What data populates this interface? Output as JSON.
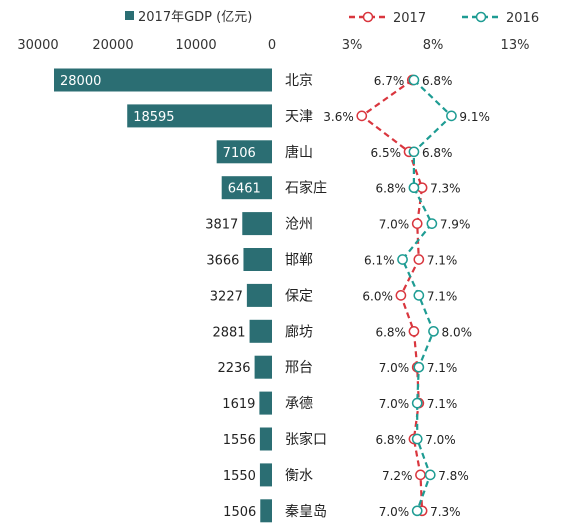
{
  "chart_data": [
    {
      "type": "bar",
      "orientation": "horizontal",
      "legend": "2017年GDP (亿元)",
      "x_ticks": [
        "30000",
        "20000",
        "10000",
        "0"
      ],
      "xlim": [
        0,
        30000
      ],
      "axis_position": "top",
      "direction": "right-to-left",
      "categories": [
        "北京",
        "天津",
        "唐山",
        "石家庄",
        "沧州",
        "邯郸",
        "保定",
        "廊坊",
        "邢台",
        "承德",
        "张家口",
        "衡水",
        "秦皇岛"
      ],
      "values": [
        28000,
        18595,
        7106,
        6461,
        3817,
        3666,
        3227,
        2881,
        2236,
        1619,
        1556,
        1550,
        1506
      ],
      "value_labels": [
        "28000",
        "18595",
        "7106",
        "6461",
        "3817",
        "3666",
        "3227",
        "2881",
        "2236",
        "1619",
        "1556",
        "1550",
        "1506"
      ],
      "color": "#2b6e73"
    },
    {
      "type": "line",
      "orientation": "horizontal",
      "x_ticks": [
        "3%",
        "8%",
        "13%"
      ],
      "xlim": [
        3,
        13
      ],
      "axis_position": "top",
      "categories": [
        "北京",
        "天津",
        "唐山",
        "石家庄",
        "沧州",
        "邯郸",
        "保定",
        "廊坊",
        "邢台",
        "承德",
        "张家口",
        "衡水",
        "秦皇岛"
      ],
      "series": [
        {
          "name": "2017",
          "color": "#d9363e",
          "values": [
            6.7,
            3.6,
            6.5,
            7.3,
            7.0,
            7.1,
            6.0,
            6.8,
            7.0,
            7.1,
            6.8,
            7.2,
            7.3
          ],
          "labels": [
            "6.7%",
            "3.6%",
            "6.5%",
            "7.3%",
            "7.0%",
            "7.1%",
            "6.0%",
            "6.8%",
            "7.0%",
            "7.1%",
            "6.8%",
            "7.2%",
            "7.3%"
          ]
        },
        {
          "name": "2016",
          "color": "#1e9c93",
          "values": [
            6.8,
            9.1,
            6.8,
            6.8,
            7.9,
            6.1,
            7.1,
            8.0,
            7.1,
            7.0,
            7.0,
            7.8,
            7.0
          ],
          "labels": [
            "6.8%",
            "9.1%",
            "6.8%",
            "6.8%",
            "7.9%",
            "6.1%",
            "7.1%",
            "8.0%",
            "7.1%",
            "7.0%",
            "7.0%",
            "7.8%",
            "7.0%"
          ]
        }
      ],
      "line_style": "dashed",
      "marker": "hollow-circle",
      "legend_position": "top"
    }
  ]
}
